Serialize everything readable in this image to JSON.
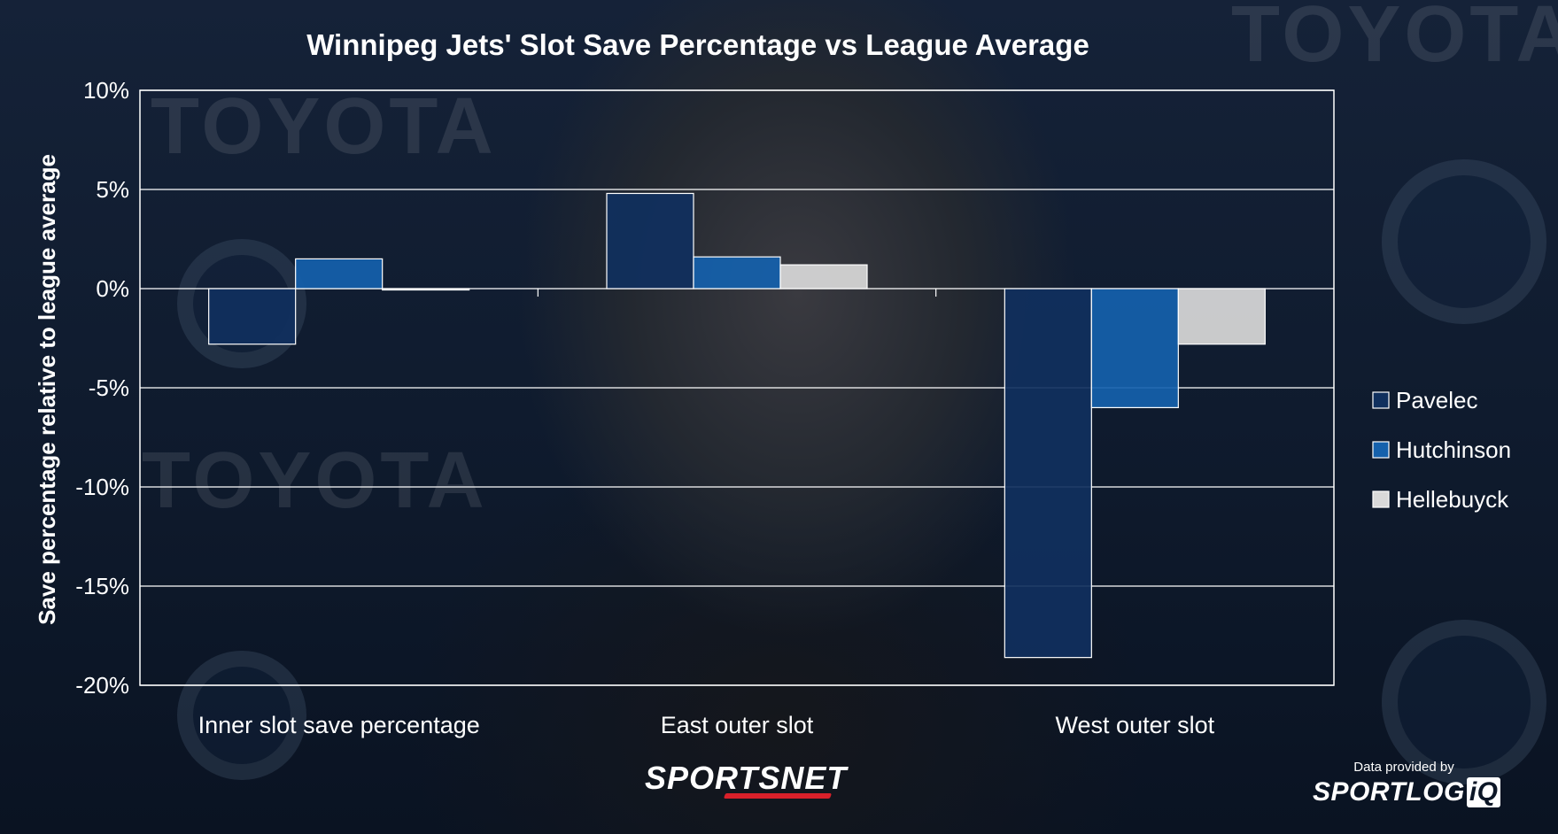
{
  "chart_data": {
    "type": "bar",
    "title": "Winnipeg Jets' Slot Save Percentage vs League Average",
    "ylabel": "Save percentage relative to league average",
    "xlabel": "",
    "categories": [
      "Inner slot save percentage",
      "East outer slot",
      "West outer slot"
    ],
    "series": [
      {
        "name": "Pavelec",
        "values": [
          -2.8,
          4.8,
          -18.6
        ],
        "color": "#10305e"
      },
      {
        "name": "Hutchinson",
        "values": [
          1.5,
          1.6,
          -6.0
        ],
        "color": "#1561ac"
      },
      {
        "name": "Hellebuyck",
        "values": [
          0.0,
          1.2,
          -2.8
        ],
        "color": "#d9d9d9"
      }
    ],
    "ylim": [
      -20,
      10
    ],
    "yticks": [
      10,
      5,
      0,
      -5,
      -10,
      -15,
      -20
    ],
    "ytick_labels": [
      "10%",
      "5%",
      "0%",
      "-5%",
      "-10%",
      "-15%",
      "-20%"
    ],
    "grid": true,
    "legend_position": "right"
  },
  "branding": {
    "sportsnet": "SPORTSNET",
    "data_credit": "Data provided by",
    "sportlogiq_main": "SPORTLOG",
    "sportlogiq_iq": "iQ"
  },
  "background_text": "TOYOTA"
}
